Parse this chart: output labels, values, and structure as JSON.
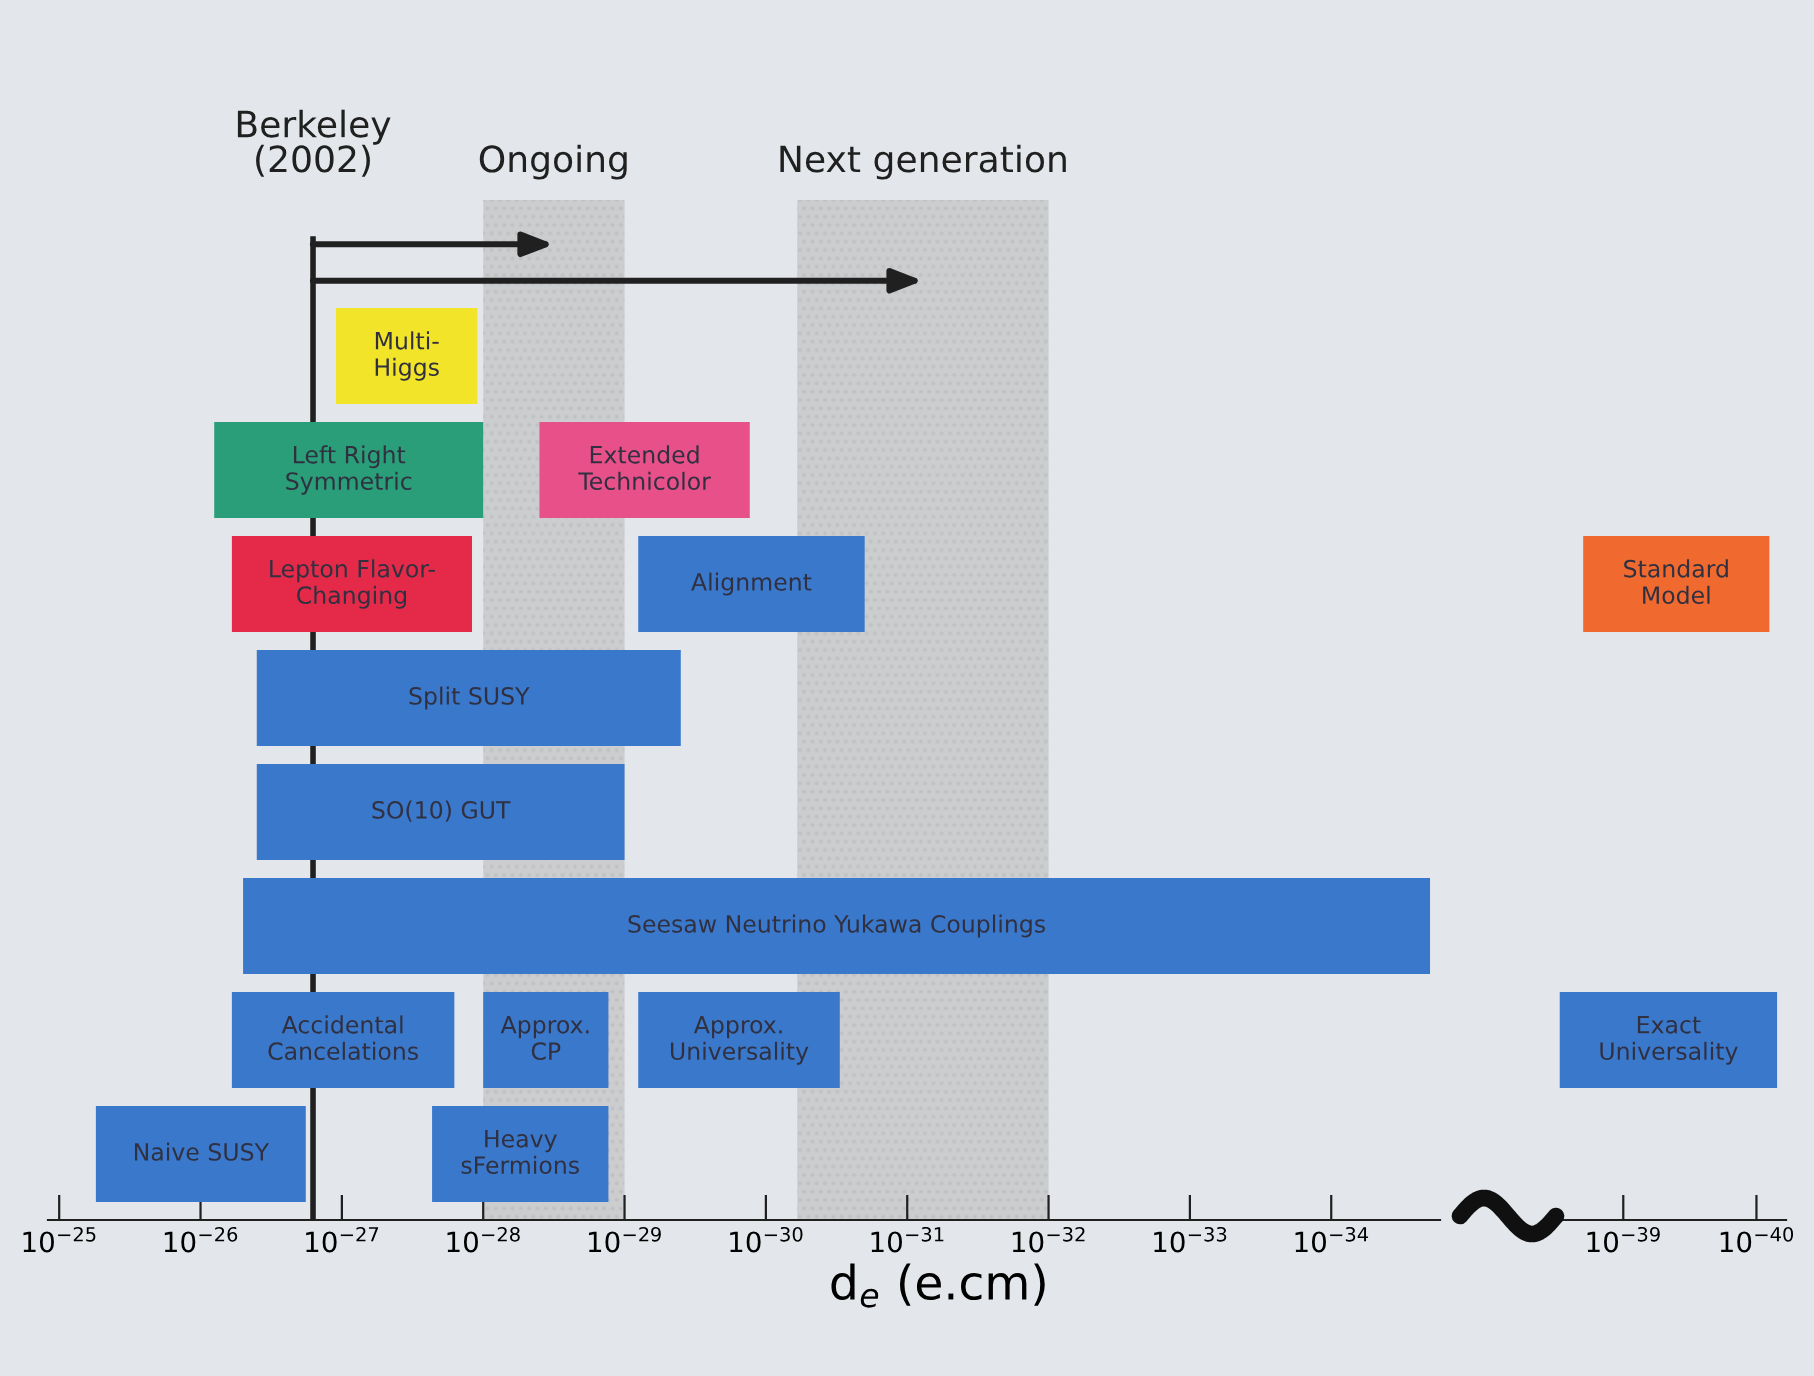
{
  "chart_data": [
    {
      "type": "bar",
      "orientation": "horizontal",
      "log": "x",
      "xlabel": "d$_{e}$ (e.cm)",
      "tick_labels": "x",
      "legend": false,
      "grid": false,
      "categories": [
        null,
        null,
        null,
        null,
        null,
        null,
        null,
        null
      ],
      "xlim": [
        1.2e-25,
        1.7e-35
      ],
      "xticks": [
        {
          "value": 1e-25,
          "label": "10$^{−25}$"
        },
        {
          "value": 1e-26,
          "label": "10$^{−26}$"
        },
        {
          "value": 1e-27,
          "label": "10$^{−27}$"
        },
        {
          "value": 1e-28,
          "label": "10$^{−28}$"
        },
        {
          "value": 1e-29,
          "label": "10$^{−29}$"
        },
        {
          "value": 1e-30,
          "label": "10$^{−30}$"
        },
        {
          "value": 1e-31,
          "label": "10$^{−31}$"
        },
        {
          "value": 1e-32,
          "label": "10$^{−32}$"
        },
        {
          "value": 1e-33,
          "label": "10$^{−33}$"
        },
        {
          "value": 1e-34,
          "label": "10$^{−34}$"
        }
      ],
      "ref_lines": [
        {
          "axis": "x",
          "value": 1.6e-27,
          "label": "Berkeley\n(2002)",
          "color": "#202020"
        }
      ],
      "bands": [
        {
          "axis": "x",
          "from": 1e-28,
          "to": 1e-29,
          "label": "Ongoing",
          "color": "#b8b8b8"
        },
        {
          "axis": "x",
          "from": 6e-31,
          "to": 1e-32,
          "label": "Next generation",
          "color": "#b8b8b8"
        }
      ],
      "series": [
        {
          "name": "Multi-\nHiggs",
          "color": "#f2e428",
          "values": [
            9.9e-28,
            null,
            null,
            null,
            null,
            null,
            null,
            null
          ],
          "base": [
            1.1e-28,
            null,
            null,
            null,
            null,
            null,
            null,
            null
          ]
        },
        {
          "name": "Left Right\nSymmetric",
          "color": "#2a9e78",
          "values": [
            null,
            7.9e-27,
            null,
            null,
            null,
            null,
            null,
            null
          ],
          "base": [
            null,
            1e-28,
            null,
            null,
            null,
            null,
            null,
            null
          ]
        },
        {
          "name": "Extended\nTechnicolor",
          "color": "#e8508a",
          "values": [
            null,
            3.87e-29,
            null,
            null,
            null,
            null,
            null,
            null
          ],
          "base": [
            null,
            1.3e-30,
            null,
            null,
            null,
            null,
            null,
            null
          ]
        },
        {
          "name": "Lepton Flavor-\nChanging",
          "color": "#e42a48",
          "values": [
            null,
            null,
            5.88e-27,
            null,
            null,
            null,
            null,
            null
          ],
          "base": [
            null,
            null,
            1.2e-28,
            null,
            null,
            null,
            null,
            null
          ]
        },
        {
          "name": "Alignment",
          "color": "#3a78cc",
          "values": [
            null,
            null,
            7.8e-30,
            null,
            null,
            null,
            null,
            null
          ],
          "base": [
            null,
            null,
            2e-31,
            null,
            null,
            null,
            null,
            null
          ]
        },
        {
          "name": "Split SUSY",
          "color": "#3a78cc",
          "values": [
            null,
            null,
            null,
            3.996e-27,
            null,
            null,
            null,
            null
          ],
          "base": [
            null,
            null,
            null,
            4e-30,
            null,
            null,
            null,
            null
          ]
        },
        {
          "name": "SO(10) GUT",
          "color": "#3a78cc",
          "values": [
            null,
            null,
            null,
            null,
            3.99e-27,
            null,
            null,
            null
          ],
          "base": [
            null,
            null,
            null,
            null,
            1e-29,
            null,
            null,
            null
          ]
        },
        {
          "name": "Seesaw Neutrino Yukawa Couplings",
          "color": "#3a78cc",
          "values": [
            null,
            null,
            null,
            null,
            null,
            5e-27,
            null,
            null
          ],
          "base": [
            null,
            null,
            null,
            null,
            null,
            2e-35,
            null,
            null
          ]
        },
        {
          "name": "Accidental\nCancelations",
          "color": "#3a78cc",
          "values": [
            null,
            null,
            null,
            null,
            null,
            null,
            5.84e-27,
            null
          ],
          "base": [
            null,
            null,
            null,
            null,
            null,
            null,
            1.6e-28,
            null
          ]
        },
        {
          "name": "Approx.\nCP",
          "color": "#3a78cc",
          "values": [
            null,
            null,
            null,
            null,
            null,
            null,
            8.7e-29,
            null
          ],
          "base": [
            null,
            null,
            null,
            null,
            null,
            null,
            1.3e-29,
            null
          ]
        },
        {
          "name": "Approx.\nUniversality",
          "color": "#3a78cc",
          "values": [
            null,
            null,
            null,
            null,
            null,
            null,
            7.7e-30,
            null
          ],
          "base": [
            null,
            null,
            null,
            null,
            null,
            null,
            3e-31,
            null
          ]
        },
        {
          "name": "Naive SUSY",
          "color": "#3a78cc",
          "values": [
            null,
            null,
            null,
            null,
            null,
            null,
            null,
            5.32e-26
          ],
          "base": [
            null,
            null,
            null,
            null,
            null,
            null,
            null,
            1.8e-27
          ]
        },
        {
          "name": "Heavy\nsFermions",
          "color": "#3a78cc",
          "values": [
            null,
            null,
            null,
            null,
            null,
            null,
            null,
            2.17e-28
          ],
          "base": [
            null,
            null,
            null,
            null,
            null,
            null,
            null,
            1.3e-29
          ]
        }
      ]
    },
    {
      "type": "bar",
      "orientation": "horizontal",
      "log": "x",
      "tick_labels": "x",
      "legend": false,
      "grid": false,
      "categories": [
        null,
        null,
        null,
        null,
        null,
        null,
        null,
        null
      ],
      "xlim": [
        3.2e-39,
        6e-41
      ],
      "xticks": [
        {
          "value": 1e-39,
          "label": "10$^{−39}$"
        },
        {
          "value": 1e-40,
          "label": "10$^{−40}$"
        }
      ],
      "series": [
        {
          "name": "Standard\nModel",
          "color": "#f06a30",
          "values": [
            null,
            null,
            1.92e-39,
            null,
            null,
            null,
            null,
            null
          ],
          "base": [
            null,
            null,
            8e-41,
            null,
            null,
            null,
            null,
            null
          ]
        },
        {
          "name": "Exact\nUniversality",
          "color": "#3a78cc",
          "values": [
            null,
            null,
            null,
            null,
            null,
            null,
            2.93e-39,
            null
          ],
          "base": [
            null,
            null,
            null,
            null,
            null,
            null,
            7e-41,
            null
          ]
        }
      ]
    }
  ]
}
